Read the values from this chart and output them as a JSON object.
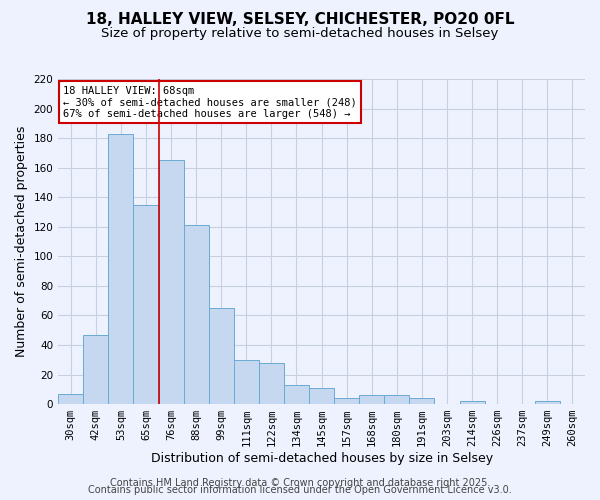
{
  "title_line1": "18, HALLEY VIEW, SELSEY, CHICHESTER, PO20 0FL",
  "title_line2": "Size of property relative to semi-detached houses in Selsey",
  "xlabel": "Distribution of semi-detached houses by size in Selsey",
  "ylabel": "Number of semi-detached properties",
  "categories": [
    "30sqm",
    "42sqm",
    "53sqm",
    "65sqm",
    "76sqm",
    "88sqm",
    "99sqm",
    "111sqm",
    "122sqm",
    "134sqm",
    "145sqm",
    "157sqm",
    "168sqm",
    "180sqm",
    "191sqm",
    "203sqm",
    "214sqm",
    "226sqm",
    "237sqm",
    "249sqm",
    "260sqm"
  ],
  "values": [
    7,
    47,
    183,
    135,
    165,
    121,
    65,
    30,
    28,
    13,
    11,
    4,
    6,
    6,
    4,
    0,
    2,
    0,
    0,
    2,
    0
  ],
  "bar_color": "#c5d8f0",
  "bar_edge_color": "#6aaad4",
  "red_line_x": 3.5,
  "annotation_title": "18 HALLEY VIEW: 68sqm",
  "annotation_line1": "← 30% of semi-detached houses are smaller (248)",
  "annotation_line2": "67% of semi-detached houses are larger (548) →",
  "annotation_box_color": "#ffffff",
  "annotation_box_edge": "#cc0000",
  "ylim": [
    0,
    220
  ],
  "yticks": [
    0,
    20,
    40,
    60,
    80,
    100,
    120,
    140,
    160,
    180,
    200,
    220
  ],
  "background_color": "#eef2ff",
  "plot_background_color": "#eef2ff",
  "grid_color": "#c8cfe0",
  "title_fontsize": 11,
  "subtitle_fontsize": 9.5,
  "axis_label_fontsize": 9,
  "tick_fontsize": 7.5,
  "footer_fontsize": 7,
  "red_line_color": "#cc0000",
  "footer_line1": "Contains HM Land Registry data © Crown copyright and database right 2025.",
  "footer_line2": "Contains public sector information licensed under the Open Government Licence v3.0."
}
